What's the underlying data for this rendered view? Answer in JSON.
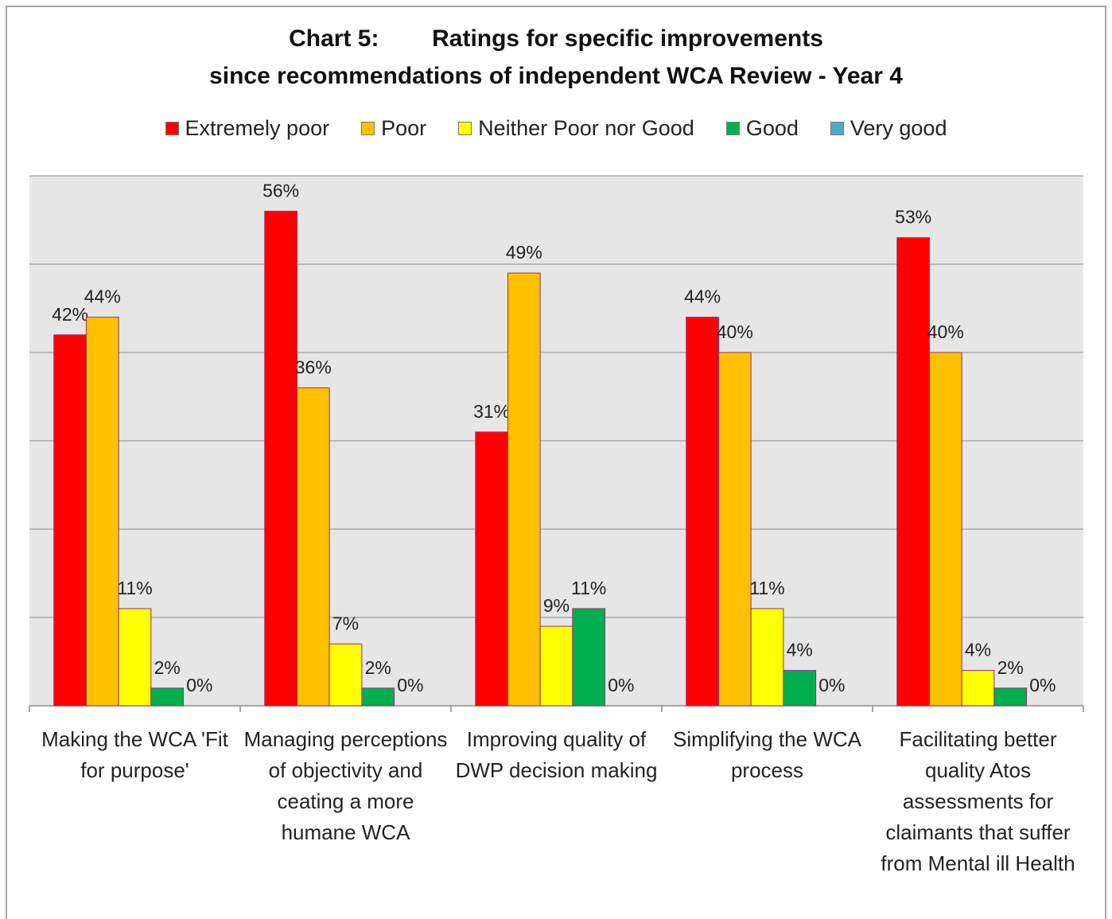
{
  "chart_data": {
    "type": "bar",
    "title": [
      "Chart 5:        Ratings for specific improvements",
      "since recommendations of independent WCA Review - Year 4"
    ],
    "categories": [
      "Making the WCA 'Fit for purpose'",
      "Managing perceptions of objectivity and ceating a more humane WCA",
      "Improving quality of DWP decision making",
      "Simplifying the WCA process",
      "Facilitating better quality Atos assessments for claimants that suffer from Mental ill Health"
    ],
    "series": [
      {
        "name": "Extremely poor",
        "color": "#ff0000",
        "values": [
          42,
          56,
          31,
          44,
          53
        ],
        "value_labels": [
          "42%",
          "56%",
          "31%",
          "44%",
          "53%"
        ]
      },
      {
        "name": "Poor",
        "color": "#ffc000",
        "values": [
          44,
          36,
          49,
          40,
          40
        ],
        "value_labels": [
          "44%",
          "36%",
          "49%",
          "40%",
          "40%"
        ]
      },
      {
        "name": "Neither Poor nor Good",
        "color": "#ffff00",
        "values": [
          11,
          7,
          9,
          11,
          4
        ],
        "value_labels": [
          "11%",
          "7%",
          "9%",
          "11%",
          "4%"
        ]
      },
      {
        "name": "Good",
        "color": "#00b050",
        "values": [
          2,
          2,
          11,
          4,
          2
        ],
        "value_labels": [
          "2%",
          "2%",
          "11%",
          "4%",
          "2%"
        ]
      },
      {
        "name": "Very good",
        "color": "#4bacc6",
        "values": [
          0,
          0,
          0,
          0,
          0
        ],
        "value_labels": [
          "0%",
          "0%",
          "0%",
          "0%",
          "0%"
        ]
      }
    ],
    "ylim": [
      0,
      60
    ],
    "yticks": [
      0,
      10,
      20,
      30,
      40,
      50,
      60
    ],
    "grid": true,
    "legend": "top"
  }
}
